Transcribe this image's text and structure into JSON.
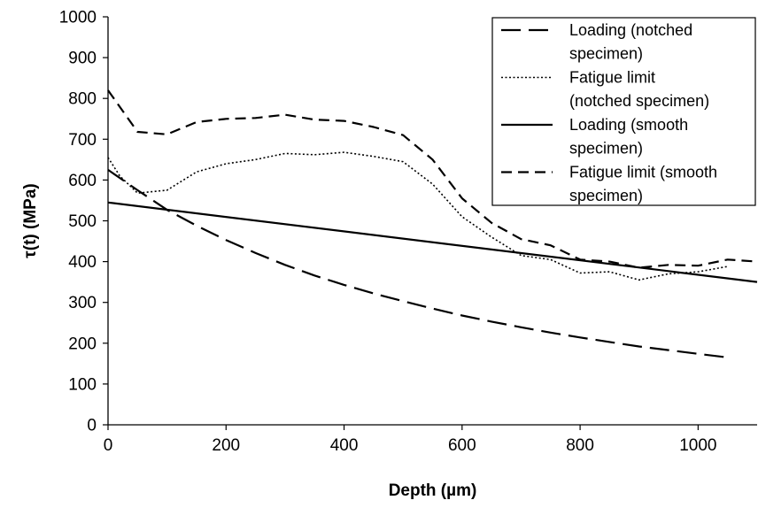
{
  "chart_data": {
    "type": "line",
    "xlabel": "Depth (µm)",
    "ylabel": "τ(t) (MPa)",
    "xlim": [
      0,
      1100
    ],
    "ylim": [
      0,
      1000
    ],
    "x_ticks": [
      "0",
      "200",
      "400",
      "600",
      "800",
      "1000"
    ],
    "y_ticks": [
      "0",
      "100",
      "200",
      "300",
      "400",
      "500",
      "600",
      "700",
      "800",
      "900",
      "1000"
    ],
    "grid": false,
    "legend_position": "top-right",
    "series": [
      {
        "name": "Loading (notched specimen)",
        "legend_lines": [
          "Loading (notched",
          "specimen)"
        ],
        "style": "long-dash",
        "color": "#000000",
        "x": [
          0,
          50,
          100,
          150,
          200,
          250,
          300,
          350,
          400,
          450,
          500,
          550,
          600,
          650,
          700,
          750,
          800,
          850,
          900,
          950,
          1000,
          1050
        ],
        "y": [
          625,
          575,
          527,
          488,
          453,
          421,
          392,
          366,
          343,
          322,
          303,
          285,
          268,
          253,
          239,
          226,
          214,
          203,
          192,
          183,
          174,
          165
        ]
      },
      {
        "name": "Fatigue limit (notched specimen)",
        "legend_lines": [
          "Fatigue limit",
          "(notched specimen)"
        ],
        "style": "dotted",
        "color": "#000000",
        "x": [
          0,
          20,
          50,
          100,
          150,
          200,
          250,
          300,
          350,
          400,
          450,
          500,
          550,
          600,
          650,
          700,
          750,
          800,
          850,
          900,
          950,
          1000,
          1050
        ],
        "y": [
          655,
          610,
          568,
          575,
          620,
          640,
          650,
          665,
          662,
          668,
          658,
          645,
          590,
          510,
          460,
          415,
          405,
          372,
          375,
          355,
          370,
          375,
          388
        ]
      },
      {
        "name": "Loading (smooth specimen)",
        "legend_lines": [
          "Loading (smooth",
          "specimen)"
        ],
        "style": "solid",
        "color": "#000000",
        "x": [
          0,
          1100
        ],
        "y": [
          545,
          350
        ]
      },
      {
        "name": "Fatigue limit (smooth specimen)",
        "legend_lines": [
          "Fatigue limit (smooth",
          "specimen)"
        ],
        "style": "short-dash",
        "color": "#000000",
        "x": [
          0,
          50,
          100,
          150,
          200,
          250,
          300,
          350,
          400,
          450,
          500,
          550,
          600,
          650,
          700,
          750,
          800,
          850,
          900,
          950,
          1000,
          1050,
          1100
        ],
        "y": [
          820,
          718,
          712,
          742,
          750,
          752,
          760,
          748,
          745,
          730,
          710,
          650,
          555,
          495,
          455,
          440,
          405,
          400,
          385,
          392,
          390,
          405,
          400
        ]
      }
    ]
  }
}
